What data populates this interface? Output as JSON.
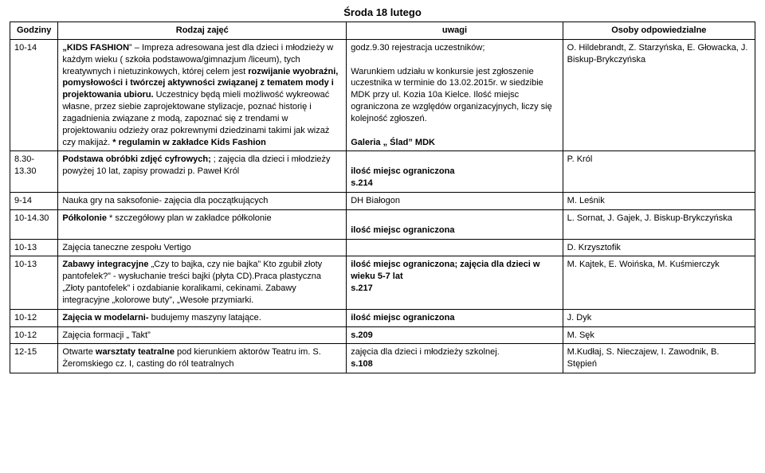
{
  "day_title": "Środa 18 lutego",
  "headers": {
    "hours": "Godziny",
    "type": "Rodzaj zajęć",
    "notes": "uwagi",
    "persons": "Osoby odpowiedzialne"
  },
  "rows": [
    {
      "hours": "10-14",
      "type_parts": [
        {
          "t": "„KIDS FASHION",
          "b": true
        },
        {
          "t": "” – Impreza adresowana jest dla dzieci i młodzieży w każdym wieku ( szkoła podstawowa/gimnazjum /liceum), tych kreatywnych i nietuzinkowych, której celem jest "
        },
        {
          "t": "rozwijanie wyobraźni, pomysłowości i twórczej aktywności związanej z tematem mody i projektowania ubioru.",
          "b": true
        },
        {
          "t": " Uczestnicy będą mieli możliwość wykreować własne, przez siebie zaprojektowane stylizacje, poznać historię i zagadnienia związane z modą, zapoznać się z trendami w projektowaniu odzieży oraz pokrewnymi dziedzinami takimi jak wizaż czy makijaż. "
        },
        {
          "t": "* regulamin w zakładce Kids Fashion",
          "b": true
        }
      ],
      "notes_parts": [
        {
          "t": "godz.9.30 rejestracja uczestników;"
        },
        {
          "t": " ",
          "br": true
        },
        {
          "t": " ",
          "br": true
        },
        {
          "t": "Warunkiem udziału w konkursie jest zgłoszenie uczestnika w terminie do 13.02.2015r. w siedzibie MDK przy ul. Kozia 10a Kielce. Ilość miejsc ograniczona ze względów organizacyjnych, liczy się kolejność zgłoszeń."
        },
        {
          "t": " ",
          "br": true
        },
        {
          "t": " ",
          "br": true
        },
        {
          "t": "Galeria „ Ślad” MDK",
          "b": true
        }
      ],
      "persons": "O. Hildebrandt, Z. Starzyńska, E. Głowacka, J. Biskup-Brykczyńska"
    },
    {
      "hours": "8.30-13.30",
      "type_parts": [
        {
          "t": "Podstawa obróbki zdjęć cyfrowych;",
          "b": true
        },
        {
          "t": " ; zajęcia dla dzieci i młodzieży powyżej 10 lat, zapisy prowadzi p. Paweł Król"
        }
      ],
      "notes_parts": [
        {
          "t": " ",
          "br": true
        },
        {
          "t": "ilość miejsc ograniczona",
          "b": true
        },
        {
          "t": " ",
          "br": true
        },
        {
          "t": "s.214",
          "b": true
        }
      ],
      "persons": "P. Król"
    },
    {
      "hours": "9-14",
      "type_parts": [
        {
          "t": "Nauka gry na saksofonie- zajęcia dla początkujących"
        }
      ],
      "notes_parts": [
        {
          "t": "DH Białogon"
        }
      ],
      "persons": "M. Leśnik"
    },
    {
      "hours": "10-14.30",
      "type_parts": [
        {
          "t": "Półkolonie",
          "b": true
        },
        {
          "t": " * szczegółowy plan w zakładce półkolonie"
        }
      ],
      "notes_parts": [
        {
          "t": " ",
          "br": true
        },
        {
          "t": "ilość miejsc ograniczona",
          "b": true
        }
      ],
      "persons": "L. Sornat, J. Gajek, J. Biskup-Brykczyńska"
    },
    {
      "hours": "10-13",
      "type_parts": [
        {
          "t": "Zajęcia taneczne zespołu Vertigo"
        }
      ],
      "notes_parts": [
        {
          "t": ""
        }
      ],
      "persons": "D. Krzysztofik"
    },
    {
      "hours": "10-13",
      "type_parts": [
        {
          "t": "Zabawy integracyjne",
          "b": true
        },
        {
          "t": " „Czy to bajka, czy nie bajka” Kto zgubił złoty pantofelek?” - wysłuchanie treści bajki (płyta CD).Praca plastyczna „Złoty pantofelek” i ozdabianie koralikami, cekinami. Zabawy integracyjne „kolorowe buty”, „Wesołe przymiarki."
        }
      ],
      "notes_parts": [
        {
          "t": "ilość miejsc ograniczona; zajęcia dla dzieci w wieku 5-7 lat",
          "b": true
        },
        {
          "t": " ",
          "br": true
        },
        {
          "t": "s.217",
          "b": true
        }
      ],
      "persons": "M. Kajtek, E. Woińska, M. Kuśmierczyk"
    },
    {
      "hours": "10-12",
      "type_parts": [
        {
          "t": "Zajęcia w modelarni- ",
          "b": true
        },
        {
          "t": "budujemy maszyny latające."
        }
      ],
      "notes_parts": [
        {
          "t": "ilość miejsc ograniczona",
          "b": true
        }
      ],
      "persons": "J. Dyk"
    },
    {
      "hours": "10-12",
      "type_parts": [
        {
          "t": "Zajęcia formacji „ Takt”"
        }
      ],
      "notes_parts": [
        {
          "t": "s.209",
          "b": true
        }
      ],
      "persons": "M. Sęk"
    },
    {
      "hours": "12-15",
      "type_parts": [
        {
          "t": "Otwarte "
        },
        {
          "t": "warsztaty teatralne",
          "b": true
        },
        {
          "t": " pod kierunkiem aktorów Teatru im. S. Żeromskiego cz. I, casting do ról teatralnych"
        }
      ],
      "notes_parts": [
        {
          "t": "zajęcia dla dzieci i młodzieży szkolnej."
        },
        {
          "t": " ",
          "br": true
        },
        {
          "t": "s.108",
          "b": true
        }
      ],
      "persons": "M.Kudłaj, S. Nieczajew, I. Zawodnik, B. Stępień"
    }
  ]
}
